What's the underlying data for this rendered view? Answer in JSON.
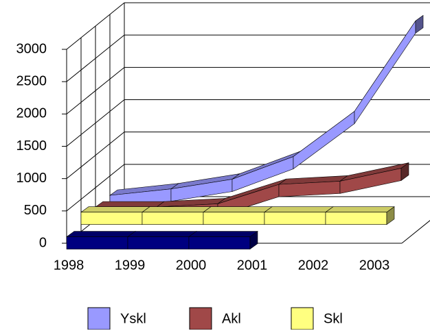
{
  "chart_data": {
    "type": "ribbon3d",
    "categories": [
      "1998",
      "1999",
      "2000",
      "2001",
      "2002",
      "2003"
    ],
    "series": [
      {
        "name": "Yskl",
        "color": "#9999ff",
        "values": [
          200,
          300,
          450,
          800,
          1500,
          2900
        ]
      },
      {
        "name": "Akl",
        "color": "#a04848",
        "values": [
          200,
          200,
          250,
          550,
          600,
          800
        ]
      },
      {
        "name": "Skl",
        "color": "#ffff80",
        "values": [
          300,
          300,
          300,
          300,
          300,
          300
        ]
      },
      {
        "color": "#000080",
        "values": [
          100,
          100,
          100,
          100,
          null,
          null
        ]
      }
    ],
    "ylim": [
      0,
      3000
    ],
    "yticks": [
      0,
      500,
      1000,
      1500,
      2000,
      2500,
      3000
    ],
    "grid": true
  }
}
